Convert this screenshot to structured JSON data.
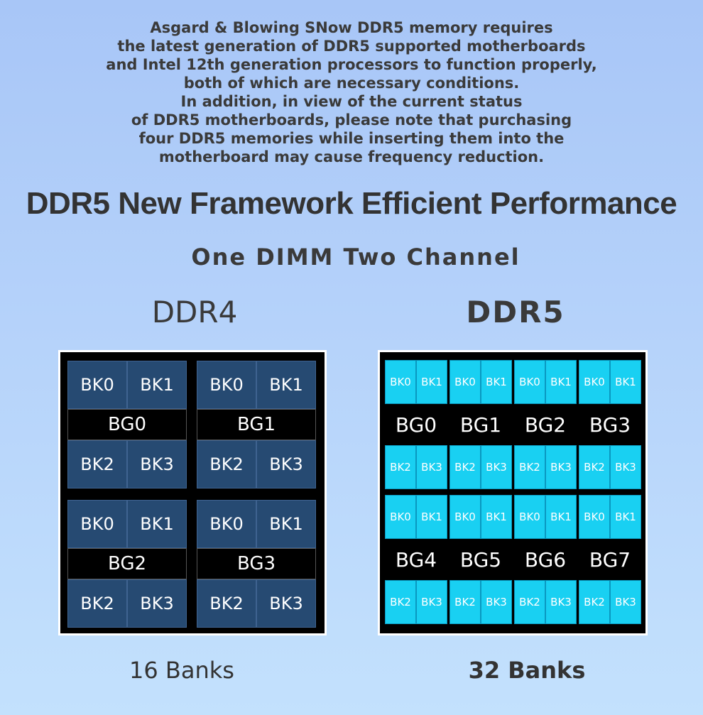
{
  "notice_lines": [
    "Asgard & Blowing SNow DDR5 memory requires",
    "the latest generation of DDR5 supported motherboards",
    "and Intel 12th generation processors to function properly,",
    "both of which are necessary conditions.",
    "In addition, in view of the current status",
    "of DDR5 motherboards, please note that purchasing",
    "four DDR5 memories while inserting them into the",
    "motherboard may cause frequency reduction."
  ],
  "headline": "DDR5 New Framework Efficient Performance",
  "subheadline": "One DIMM Two Channel",
  "ddr4": {
    "title": "DDR4",
    "banks_caption": "16 Banks",
    "groups": [
      {
        "label": "BG0",
        "banks": [
          "BK0",
          "BK1",
          "BK2",
          "BK3"
        ]
      },
      {
        "label": "BG1",
        "banks": [
          "BK0",
          "BK1",
          "BK2",
          "BK3"
        ]
      },
      {
        "label": "BG2",
        "banks": [
          "BK0",
          "BK1",
          "BK2",
          "BK3"
        ]
      },
      {
        "label": "BG3",
        "banks": [
          "BK0",
          "BK1",
          "BK2",
          "BK3"
        ]
      }
    ]
  },
  "ddr5": {
    "title": "DDR5",
    "banks_caption": "32 Banks",
    "groups": [
      {
        "label": "BG0",
        "banks": [
          "BK0",
          "BK1",
          "BK2",
          "BK3"
        ]
      },
      {
        "label": "BG1",
        "banks": [
          "BK0",
          "BK1",
          "BK2",
          "BK3"
        ]
      },
      {
        "label": "BG2",
        "banks": [
          "BK0",
          "BK1",
          "BK2",
          "BK3"
        ]
      },
      {
        "label": "BG3",
        "banks": [
          "BK0",
          "BK1",
          "BK2",
          "BK3"
        ]
      },
      {
        "label": "BG4",
        "banks": [
          "BK0",
          "BK1",
          "BK2",
          "BK3"
        ]
      },
      {
        "label": "BG5",
        "banks": [
          "BK0",
          "BK1",
          "BK2",
          "BK3"
        ]
      },
      {
        "label": "BG6",
        "banks": [
          "BK0",
          "BK1",
          "BK2",
          "BK3"
        ]
      },
      {
        "label": "BG7",
        "banks": [
          "BK0",
          "BK1",
          "BK2",
          "BK3"
        ]
      }
    ]
  },
  "colors": {
    "ddr4_bank": "#264a72",
    "ddr5_bank": "#19d0f2",
    "chip_background": "#000000"
  }
}
